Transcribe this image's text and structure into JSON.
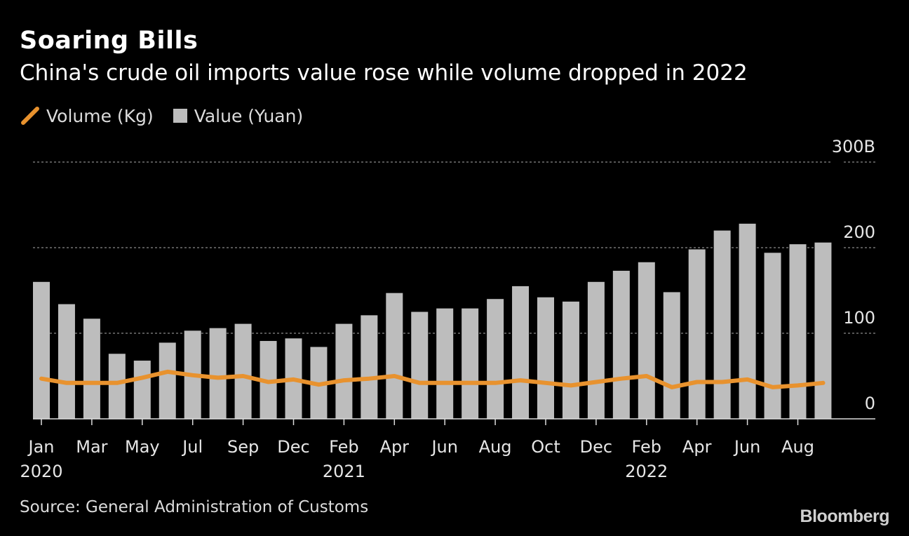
{
  "header": {
    "title": "Soaring Bills",
    "subtitle": "China's crude oil imports value rose while volume dropped in 2022"
  },
  "legend": {
    "volume_label": "Volume (Kg)",
    "value_label": "Value (Yuan)"
  },
  "footer": {
    "source": "Source: General Administration of Customs",
    "brand": "Bloomberg"
  },
  "colors": {
    "bar": "#bdbdbd",
    "line": "#e8922e",
    "background": "#000000",
    "grid": "#8a8a8a"
  },
  "chart_data": {
    "type": "bar",
    "title": "Soaring Bills",
    "subtitle": "China's crude oil imports value rose while volume dropped in 2022",
    "x": [
      "Jan 2020",
      "Feb 2020",
      "Mar 2020",
      "Apr 2020",
      "May 2020",
      "Jun 2020",
      "Jul 2020",
      "Aug 2020",
      "Sep 2020",
      "Oct 2020",
      "Dec 2020",
      "Jan 2021",
      "Feb 2021",
      "Mar 2021",
      "Apr 2021",
      "May 2021",
      "Jun 2021",
      "Jul 2021",
      "Aug 2021",
      "Sep 2021",
      "Oct 2021",
      "Nov 2021",
      "Dec 2021",
      "Jan 2022",
      "Feb 2022",
      "Mar 2022",
      "Apr 2022",
      "May 2022",
      "Jun 2022",
      "Jul 2022",
      "Aug 2022",
      "Sep 2022"
    ],
    "series": [
      {
        "name": "Value (Yuan)",
        "type": "bar",
        "values": [
          160,
          134,
          117,
          76,
          68,
          89,
          103,
          106,
          111,
          91,
          94,
          84,
          111,
          121,
          147,
          125,
          129,
          129,
          140,
          155,
          142,
          137,
          160,
          173,
          183,
          148,
          198,
          220,
          228,
          194,
          204,
          206
        ]
      },
      {
        "name": "Volume (Kg)",
        "type": "line",
        "values": [
          47,
          42,
          42,
          42,
          48,
          55,
          51,
          48,
          50,
          43,
          46,
          40,
          45,
          47,
          50,
          42,
          42,
          42,
          42,
          45,
          42,
          39,
          43,
          47,
          50,
          37,
          43,
          43,
          46,
          37,
          39,
          42
        ]
      }
    ],
    "ylim": [
      0,
      300
    ],
    "yticks": [
      {
        "value": 0,
        "label": "0"
      },
      {
        "value": 100,
        "label": "100"
      },
      {
        "value": 200,
        "label": "200"
      },
      {
        "value": 300,
        "label": "300B"
      }
    ],
    "xtick_labels": [
      {
        "index": 0,
        "month": "Jan",
        "year": "2020"
      },
      {
        "index": 2,
        "month": "Mar",
        "year": ""
      },
      {
        "index": 4,
        "month": "May",
        "year": ""
      },
      {
        "index": 6,
        "month": "Jul",
        "year": ""
      },
      {
        "index": 8,
        "month": "Sep",
        "year": ""
      },
      {
        "index": 10,
        "month": "Dec",
        "year": ""
      },
      {
        "index": 12,
        "month": "Feb",
        "year": "2021"
      },
      {
        "index": 14,
        "month": "Apr",
        "year": ""
      },
      {
        "index": 16,
        "month": "Jun",
        "year": ""
      },
      {
        "index": 18,
        "month": "Aug",
        "year": ""
      },
      {
        "index": 20,
        "month": "Oct",
        "year": ""
      },
      {
        "index": 22,
        "month": "Dec",
        "year": ""
      },
      {
        "index": 24,
        "month": "Feb",
        "year": "2022"
      },
      {
        "index": 26,
        "month": "Apr",
        "year": ""
      },
      {
        "index": 28,
        "month": "Jun",
        "year": ""
      },
      {
        "index": 30,
        "month": "Aug",
        "year": ""
      }
    ],
    "grid": true,
    "legend_position": "top-left"
  }
}
